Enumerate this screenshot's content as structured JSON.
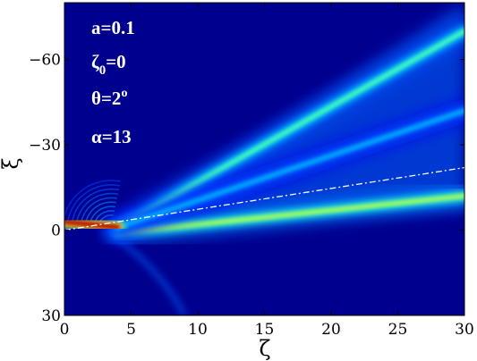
{
  "chart_data": {
    "type": "heatmap",
    "xlabel": "ζ",
    "ylabel": "ξ",
    "xlim": [
      0,
      30
    ],
    "ylim": [
      30,
      -80
    ],
    "x_ticks": [
      0,
      5,
      10,
      15,
      20,
      25,
      30
    ],
    "y_ticks": [
      {
        "value": -60,
        "label": "−60"
      },
      {
        "value": -30,
        "label": "−30"
      },
      {
        "value": 0,
        "label": "0"
      },
      {
        "value": 30,
        "label": "30"
      }
    ],
    "colormap": "jet",
    "colormap_colors": [
      "#00008f",
      "#0000ff",
      "#00ffff",
      "#ffff00",
      "#ff0000",
      "#800000"
    ],
    "background_color": "#00008f",
    "annotations": [
      {
        "id": "a",
        "text": "a=0.1"
      },
      {
        "id": "zeta0",
        "base": "ζ",
        "sub": "0",
        "rest": "=0"
      },
      {
        "id": "theta",
        "base": "θ=2",
        "sup": "o"
      },
      {
        "id": "alpha",
        "text": "α=13"
      }
    ],
    "beams": [
      {
        "name": "lower beam",
        "zeta": [
          4,
          30
        ],
        "xi": [
          1,
          -12
        ],
        "peak_intensity": 0.55
      },
      {
        "name": "upper beam",
        "zeta": [
          4,
          30
        ],
        "xi": [
          -1,
          -70
        ],
        "peak_intensity": 0.45
      },
      {
        "name": "middle beam",
        "zeta": [
          4,
          30
        ],
        "xi": [
          -1,
          -42
        ],
        "peak_intensity": 0.3
      }
    ],
    "reference_line": {
      "style": "dash-dot",
      "color": "#ffffff",
      "zeta": [
        0,
        30
      ],
      "xi": [
        0,
        -22
      ]
    },
    "source_spot": {
      "zeta": [
        0,
        4
      ],
      "xi": [
        -3,
        -1
      ],
      "peak_intensity": 1.0
    }
  }
}
